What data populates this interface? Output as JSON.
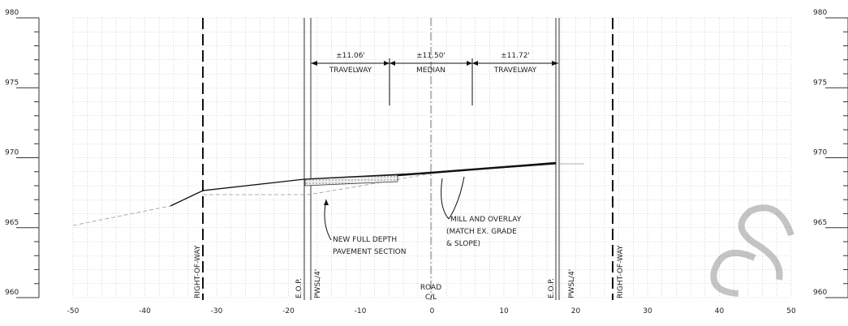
{
  "elevation_axis": {
    "labels": [
      980,
      975,
      970,
      965,
      960
    ]
  },
  "station_axis": {
    "labels": [
      -50,
      -40,
      -30,
      -20,
      -10,
      0,
      10,
      20,
      30,
      40,
      50
    ]
  },
  "dimensions": [
    {
      "width": "±11.06'",
      "label": "TRAVELWAY"
    },
    {
      "width": "±11.50'",
      "label": "MEDIAN"
    },
    {
      "width": "±11.72'",
      "label": "TRAVELWAY"
    }
  ],
  "callouts": {
    "full_depth": [
      "NEW FULL DEPTH",
      "PAVEMENT SECTION"
    ],
    "mill_overlay": [
      "MILL AND OVERLAY",
      "(MATCH EX. GRADE",
      "& SLOPE)"
    ]
  },
  "vertical_labels": [
    "RIGHT-OF-WAY",
    "E.O.P.",
    "PWSL/4'",
    "E.O.P.",
    "PWSL/4'",
    "RIGHT-OF-WAY"
  ],
  "centerline": [
    "ROAD",
    "C/L"
  ]
}
